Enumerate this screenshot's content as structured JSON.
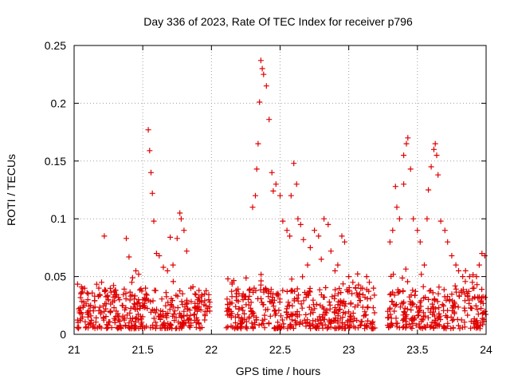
{
  "chart_data": {
    "type": "scatter",
    "title": "Day 336 of 2023, Rate Of TEC Index for receiver p796",
    "xlabel": "GPS time / hours",
    "ylabel": "ROTI / TECUs",
    "xlim": [
      21,
      24
    ],
    "ylim": [
      0,
      0.25
    ],
    "xticks": [
      21,
      21.5,
      22,
      22.5,
      23,
      23.5,
      24
    ],
    "xtick_labels": [
      "21",
      "21.5",
      "22",
      "22.5",
      "23",
      "23.5",
      "24"
    ],
    "yticks": [
      0,
      0.05,
      0.1,
      0.15,
      0.2,
      0.25
    ],
    "ytick_labels": [
      "0",
      "0.05",
      "0.1",
      "0.15",
      "0.2",
      "0.25"
    ],
    "grid": true,
    "marker": "+",
    "marker_color": "#e00000",
    "series": [
      {
        "name": "ROTI",
        "x": [
          21.05,
          21.07,
          21.1,
          21.12,
          21.15,
          21.18,
          21.2,
          21.22,
          21.23,
          21.25,
          21.28,
          21.3,
          21.33,
          21.35,
          21.38,
          21.4,
          21.42,
          21.45,
          21.47,
          21.5,
          21.52,
          21.54,
          21.55,
          21.56,
          21.57,
          21.58,
          21.6,
          21.62,
          21.65,
          21.68,
          21.7,
          21.72,
          21.75,
          21.77,
          21.78,
          21.8,
          21.82,
          21.85,
          21.88,
          21.9,
          21.93,
          21.95,
          21.98,
          22.12,
          22.15,
          22.18,
          22.2,
          22.23,
          22.25,
          22.28,
          22.3,
          22.32,
          22.33,
          22.34,
          22.35,
          22.36,
          22.37,
          22.38,
          22.4,
          22.42,
          22.44,
          22.45,
          22.47,
          22.5,
          22.52,
          22.55,
          22.57,
          22.58,
          22.6,
          22.62,
          22.63,
          22.65,
          22.67,
          22.7,
          22.72,
          22.75,
          22.78,
          22.8,
          22.82,
          22.85,
          22.87,
          22.9,
          22.92,
          22.95,
          22.97,
          23.0,
          23.03,
          23.05,
          23.08,
          23.1,
          23.13,
          23.15,
          23.18,
          23.3,
          23.32,
          23.34,
          23.35,
          23.37,
          23.4,
          23.4,
          23.42,
          23.43,
          23.45,
          23.47,
          23.5,
          23.52,
          23.55,
          23.57,
          23.58,
          23.6,
          23.62,
          23.63,
          23.64,
          23.65,
          23.67,
          23.7,
          23.72,
          23.75,
          23.78,
          23.8,
          23.83,
          23.85,
          23.88,
          23.9,
          23.93,
          23.95,
          23.97,
          23.99
        ],
        "y": [
          0.035,
          0.028,
          0.03,
          0.025,
          0.033,
          0.04,
          0.045,
          0.085,
          0.038,
          0.03,
          0.028,
          0.033,
          0.03,
          0.025,
          0.083,
          0.067,
          0.045,
          0.055,
          0.052,
          0.03,
          0.04,
          0.177,
          0.159,
          0.14,
          0.122,
          0.098,
          0.07,
          0.068,
          0.058,
          0.055,
          0.084,
          0.06,
          0.083,
          0.105,
          0.1,
          0.09,
          0.072,
          0.04,
          0.035,
          0.03,
          0.033,
          0.035,
          0.03,
          0.048,
          0.045,
          0.038,
          0.035,
          0.03,
          0.033,
          0.038,
          0.11,
          0.12,
          0.143,
          0.165,
          0.201,
          0.237,
          0.23,
          0.225,
          0.215,
          0.186,
          0.14,
          0.124,
          0.13,
          0.12,
          0.098,
          0.09,
          0.085,
          0.12,
          0.148,
          0.13,
          0.1,
          0.095,
          0.082,
          0.06,
          0.075,
          0.09,
          0.085,
          0.065,
          0.1,
          0.095,
          0.072,
          0.055,
          0.06,
          0.085,
          0.08,
          0.05,
          0.045,
          0.04,
          0.035,
          0.04,
          0.05,
          0.045,
          0.04,
          0.08,
          0.09,
          0.128,
          0.11,
          0.1,
          0.13,
          0.155,
          0.165,
          0.17,
          0.143,
          0.1,
          0.09,
          0.08,
          0.06,
          0.1,
          0.125,
          0.145,
          0.16,
          0.165,
          0.155,
          0.138,
          0.098,
          0.09,
          0.08,
          0.068,
          0.06,
          0.055,
          0.05,
          0.055,
          0.05,
          0.045,
          0.05,
          0.06,
          0.07,
          0.068
        ],
        "dense_band": {
          "range": [
            0.005,
            0.04
          ],
          "segments": [
            [
              21.02,
              21.99
            ],
            [
              22.1,
              23.19
            ],
            [
              23.28,
              24.0
            ]
          ]
        }
      }
    ]
  }
}
